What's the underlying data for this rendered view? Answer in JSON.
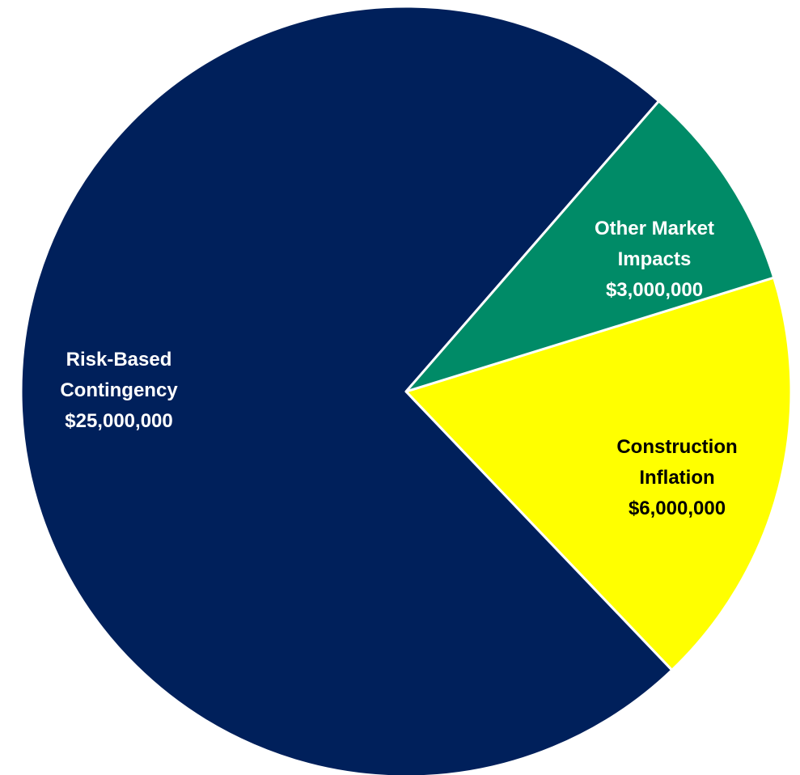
{
  "chart_data": {
    "type": "pie",
    "title": "",
    "slices": [
      {
        "name": "Risk-Based Contingency",
        "label_lines": [
          "Risk-Based",
          "Contingency",
          "$25,000,000"
        ],
        "value": 25000000,
        "color": "#00205B",
        "label_color": "#ffffff"
      },
      {
        "name": "Other Market Impacts",
        "label_lines": [
          "Other Market",
          "Impacts",
          "$3,000,000"
        ],
        "value": 3000000,
        "color": "#008B67",
        "label_color": "#ffffff"
      },
      {
        "name": "Construction Inflation",
        "label_lines": [
          "Construction",
          "Inflation",
          "$6,000,000"
        ],
        "value": 6000000,
        "color": "#FFFF00",
        "label_color": "#000000"
      }
    ],
    "slice_border_color": "#ffffff",
    "legend": "none"
  }
}
